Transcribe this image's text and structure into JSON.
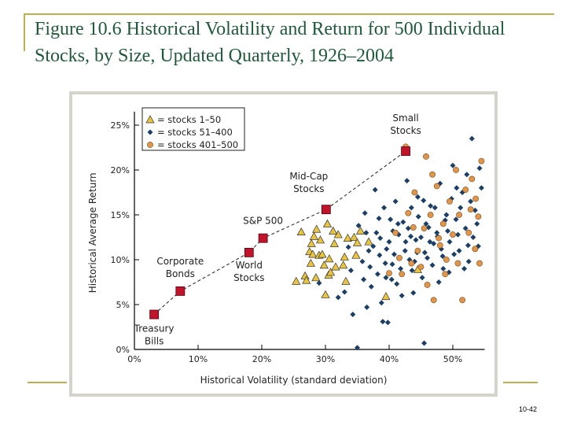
{
  "slide": {
    "title": "Figure 10.6  Historical Volatility and Return for 500 Individual Stocks, by Size, Updated Quarterly, 1926–2004",
    "page_number": "10-42",
    "accent_color": "#bfae4a",
    "title_color": "#1e5a3a"
  },
  "chart_data": {
    "type": "scatter",
    "xlabel": "Historical Volatility (standard deviation)",
    "ylabel": "Historical Average Return",
    "xlim": [
      0,
      55
    ],
    "ylim": [
      0,
      26
    ],
    "xticks": [
      "0%",
      "10%",
      "20%",
      "30%",
      "40%",
      "50%"
    ],
    "yticks": [
      "0%",
      "5%",
      "10%",
      "15%",
      "20%",
      "25%"
    ],
    "legend_position": "top-left",
    "legend": [
      "= stocks 1–50",
      "= stocks 51–400",
      "= stocks 401–500"
    ],
    "colors": {
      "stocks_1_50": "#e8c440",
      "stocks_51_400": "#1b3f66",
      "stocks_401_500": "#e0964a",
      "portfolio": "#c0142a"
    },
    "portfolios": [
      {
        "label": [
          "Treasury",
          "Bills"
        ],
        "x": 3.1,
        "y": 3.9
      },
      {
        "label": [
          "Corporate",
          "Bonds"
        ],
        "x": 7.2,
        "y": 6.5
      },
      {
        "label": [
          "World",
          "Stocks"
        ],
        "x": 18.0,
        "y": 10.8
      },
      {
        "label": [
          "S&P 500"
        ],
        "x": 20.2,
        "y": 12.4
      },
      {
        "label": [
          "Mid-Cap",
          "Stocks"
        ],
        "x": 30.1,
        "y": 15.6
      },
      {
        "label": [
          "Small",
          "Stocks"
        ],
        "x": 42.6,
        "y": 22.1
      }
    ],
    "series": [
      {
        "name": "stocks 1–50",
        "marker": "triangle",
        "points": [
          [
            25.4,
            7.6
          ],
          [
            26.8,
            8.2
          ],
          [
            27.0,
            7.7
          ],
          [
            27.5,
            10.9
          ],
          [
            27.7,
            9.6
          ],
          [
            28.0,
            10.6
          ],
          [
            28.5,
            8.0
          ],
          [
            29.0,
            10.5
          ],
          [
            29.5,
            10.6
          ],
          [
            29.8,
            9.4
          ],
          [
            30.0,
            6.1
          ],
          [
            30.5,
            8.3
          ],
          [
            30.8,
            8.6
          ],
          [
            31.4,
            11.8
          ],
          [
            32.0,
            12.8
          ],
          [
            32.8,
            9.4
          ],
          [
            33.0,
            10.3
          ],
          [
            33.5,
            12.4
          ],
          [
            34.5,
            12.5
          ],
          [
            34.8,
            10.5
          ],
          [
            35.0,
            11.9
          ],
          [
            35.5,
            13.2
          ],
          [
            36.8,
            12.0
          ],
          [
            39.5,
            5.9
          ],
          [
            44.5,
            8.9
          ],
          [
            26.2,
            13.1
          ],
          [
            28.2,
            12.6
          ],
          [
            30.3,
            14.0
          ],
          [
            28.6,
            13.4
          ],
          [
            31.2,
            13.2
          ],
          [
            27.8,
            11.8
          ],
          [
            29.2,
            12.2
          ],
          [
            31.6,
            9.2
          ],
          [
            33.2,
            7.6
          ],
          [
            30.6,
            10.1
          ]
        ]
      },
      {
        "name": "stocks 51–400",
        "marker": "diamond",
        "points": [
          [
            29.0,
            7.4
          ],
          [
            32.0,
            5.8
          ],
          [
            33.0,
            6.4
          ],
          [
            34.3,
            3.9
          ],
          [
            35.0,
            0.2
          ],
          [
            36.5,
            4.7
          ],
          [
            36.0,
            7.8
          ],
          [
            37.0,
            9.2
          ],
          [
            37.5,
            11.5
          ],
          [
            38.0,
            13.0
          ],
          [
            38.5,
            10.5
          ],
          [
            38.8,
            5.2
          ],
          [
            39.0,
            3.1
          ],
          [
            39.8,
            3.0
          ],
          [
            39.5,
            8.0
          ],
          [
            40.0,
            12.0
          ],
          [
            40.2,
            14.5
          ],
          [
            40.5,
            9.5
          ],
          [
            41.0,
            16.5
          ],
          [
            41.5,
            12.8
          ],
          [
            42.0,
            6.0
          ],
          [
            42.5,
            11.0
          ],
          [
            43.0,
            13.5
          ],
          [
            43.5,
            15.8
          ],
          [
            43.8,
            6.3
          ],
          [
            44.0,
            9.8
          ],
          [
            44.5,
            17.0
          ],
          [
            45.0,
            12.5
          ],
          [
            45.5,
            0.7
          ],
          [
            45.8,
            14.0
          ],
          [
            46.0,
            10.2
          ],
          [
            46.5,
            16.0
          ],
          [
            47.0,
            11.8
          ],
          [
            47.5,
            13.0
          ],
          [
            48.0,
            18.5
          ],
          [
            48.5,
            9.0
          ],
          [
            49.0,
            15.0
          ],
          [
            49.5,
            12.0
          ],
          [
            50.0,
            20.5
          ],
          [
            50.5,
            14.5
          ],
          [
            51.0,
            11.0
          ],
          [
            51.5,
            17.5
          ],
          [
            52.0,
            13.5
          ],
          [
            52.5,
            9.8
          ],
          [
            53.0,
            23.5
          ],
          [
            53.5,
            15.5
          ],
          [
            54.0,
            11.5
          ],
          [
            54.5,
            18.0
          ],
          [
            36.2,
            15.2
          ],
          [
            37.8,
            17.8
          ],
          [
            38.2,
            8.4
          ],
          [
            39.2,
            15.8
          ],
          [
            40.8,
            10.6
          ],
          [
            41.2,
            7.3
          ],
          [
            42.2,
            14.2
          ],
          [
            42.8,
            18.8
          ],
          [
            43.2,
            10.0
          ],
          [
            44.2,
            12.2
          ],
          [
            45.2,
            8.0
          ],
          [
            46.2,
            13.6
          ],
          [
            47.2,
            15.8
          ],
          [
            47.8,
            7.5
          ],
          [
            48.2,
            11.2
          ],
          [
            49.2,
            13.2
          ],
          [
            50.2,
            10.6
          ],
          [
            51.2,
            15.8
          ],
          [
            52.2,
            19.5
          ],
          [
            53.2,
            12.5
          ],
          [
            54.2,
            20.2
          ],
          [
            35.2,
            13.8
          ],
          [
            35.8,
            9.8
          ],
          [
            36.8,
            11.0
          ],
          [
            37.2,
            7.0
          ],
          [
            38.6,
            12.4
          ],
          [
            39.6,
            11.2
          ],
          [
            40.6,
            13.2
          ],
          [
            41.8,
            9.0
          ],
          [
            42.6,
            12.0
          ],
          [
            43.6,
            8.8
          ],
          [
            44.6,
            14.8
          ],
          [
            45.6,
            10.8
          ],
          [
            46.8,
            9.4
          ],
          [
            47.6,
            12.6
          ],
          [
            48.8,
            14.4
          ],
          [
            49.8,
            16.8
          ],
          [
            50.8,
            12.8
          ],
          [
            51.8,
            9.0
          ],
          [
            52.8,
            16.5
          ],
          [
            53.8,
            14.0
          ],
          [
            34.0,
            8.8
          ],
          [
            33.6,
            11.4
          ],
          [
            36.4,
            13.0
          ],
          [
            38.4,
            14.6
          ],
          [
            39.4,
            9.6
          ],
          [
            40.4,
            7.8
          ],
          [
            41.4,
            14.0
          ],
          [
            43.4,
            12.6
          ],
          [
            44.4,
            10.8
          ],
          [
            45.4,
            16.6
          ],
          [
            46.4,
            12.0
          ],
          [
            48.4,
            10.4
          ],
          [
            49.4,
            8.6
          ],
          [
            50.6,
            18.0
          ],
          [
            52.4,
            11.6
          ]
        ]
      },
      {
        "name": "stocks 401–500",
        "marker": "circle",
        "points": [
          [
            40.0,
            8.5
          ],
          [
            41.0,
            13.0
          ],
          [
            42.0,
            8.4
          ],
          [
            43.0,
            15.2
          ],
          [
            43.5,
            9.6
          ],
          [
            44.0,
            17.5
          ],
          [
            45.0,
            9.2
          ],
          [
            45.5,
            13.5
          ],
          [
            46.0,
            7.2
          ],
          [
            46.5,
            15.0
          ],
          [
            47.0,
            5.5
          ],
          [
            47.5,
            18.2
          ],
          [
            48.0,
            11.6
          ],
          [
            48.5,
            14.0
          ],
          [
            49.0,
            10.0
          ],
          [
            49.5,
            16.5
          ],
          [
            50.0,
            12.8
          ],
          [
            50.5,
            20.0
          ],
          [
            51.0,
            15.0
          ],
          [
            51.5,
            5.5
          ],
          [
            52.0,
            17.8
          ],
          [
            52.5,
            13.0
          ],
          [
            53.0,
            19.0
          ],
          [
            53.5,
            11.2
          ],
          [
            54.0,
            14.8
          ],
          [
            54.5,
            21.0
          ],
          [
            44.5,
            11.0
          ],
          [
            46.8,
            19.5
          ],
          [
            48.8,
            8.4
          ],
          [
            50.8,
            9.6
          ],
          [
            52.8,
            15.6
          ],
          [
            54.2,
            9.6
          ],
          [
            42.6,
            22.6
          ],
          [
            45.8,
            21.5
          ],
          [
            47.8,
            12.4
          ],
          [
            53.6,
            16.8
          ],
          [
            41.6,
            10.2
          ],
          [
            43.8,
            13.6
          ]
        ]
      }
    ]
  }
}
